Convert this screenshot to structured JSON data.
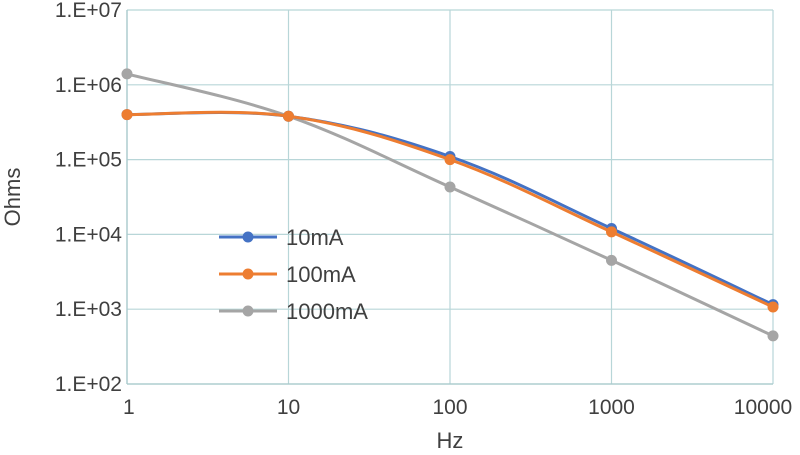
{
  "chart_data": {
    "type": "line",
    "xlabel": "Hz",
    "ylabel": "Ohms",
    "xscale": "log",
    "yscale": "log",
    "xlim": [
      1,
      10000
    ],
    "ylim": [
      100,
      10000000
    ],
    "x_ticks": [
      "1",
      "10",
      "100",
      "1000",
      "10000"
    ],
    "y_ticks": [
      "1.E+02",
      "1.E+03",
      "1.E+04",
      "1.E+05",
      "1.E+06",
      "1.E+07"
    ],
    "grid": true,
    "legend_position": "center-left",
    "x": [
      1,
      10,
      100,
      1000,
      10000
    ],
    "series": [
      {
        "name": "10mA",
        "color": "#4472C4",
        "values": [
          400000,
          380000,
          110000,
          12000,
          1150
        ]
      },
      {
        "name": "100mA",
        "color": "#ED7D31",
        "values": [
          400000,
          380000,
          100000,
          10800,
          1070
        ]
      },
      {
        "name": "1000mA",
        "color": "#A5A5A5",
        "values": [
          1400000,
          380000,
          43000,
          4500,
          440
        ]
      }
    ]
  }
}
